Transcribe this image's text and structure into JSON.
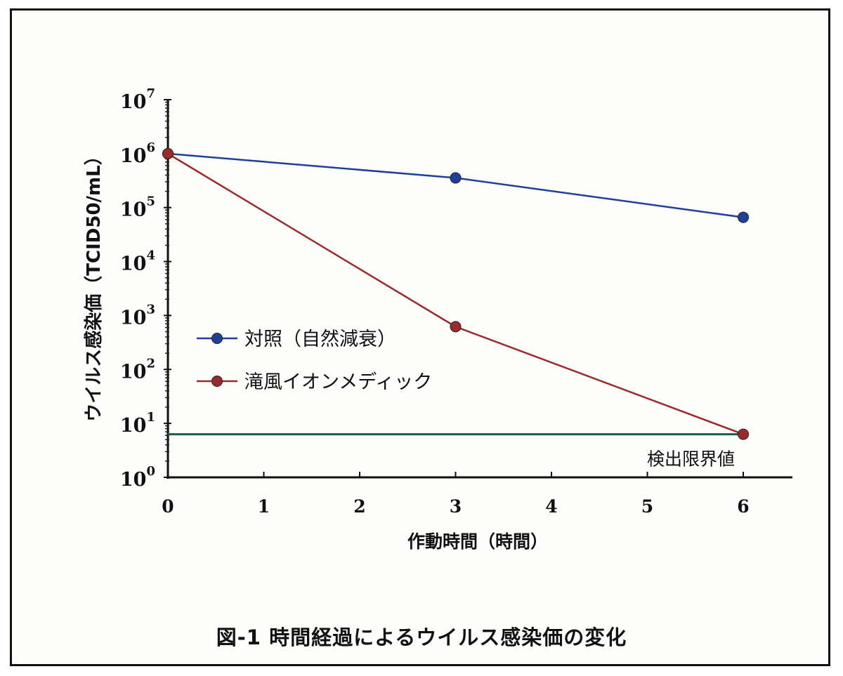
{
  "caption": "図-1 時間経過によるウイルス感染価の変化",
  "chart_data": {
    "type": "line",
    "title": "",
    "xlabel": "作動時間（時間）",
    "ylabel": "ウイルス感染価（TCID50/mL）",
    "xlim": [
      0,
      6
    ],
    "ylim_exponent": [
      0,
      7
    ],
    "y_scale": "log",
    "x_ticks": [
      "0",
      "1",
      "2",
      "3",
      "4",
      "5",
      "6"
    ],
    "y_ticks": [
      {
        "base": "10",
        "exp": "0"
      },
      {
        "base": "10",
        "exp": "1"
      },
      {
        "base": "10",
        "exp": "2"
      },
      {
        "base": "10",
        "exp": "3"
      },
      {
        "base": "10",
        "exp": "4"
      },
      {
        "base": "10",
        "exp": "5"
      },
      {
        "base": "10",
        "exp": "6"
      },
      {
        "base": "10",
        "exp": "7"
      }
    ],
    "legend_position": "left-middle",
    "series": [
      {
        "name": "対照（自然減衰）",
        "color": "#1f3f99",
        "x": [
          0,
          3,
          6
        ],
        "y": [
          1000000,
          355000,
          66000
        ]
      },
      {
        "name": "滝風イオンメディック",
        "color": "#9b2a2a",
        "x": [
          0,
          3,
          6
        ],
        "y": [
          1000000,
          620,
          6.3
        ]
      }
    ],
    "detection_limit": {
      "label": "検出限界値",
      "y": 6.3,
      "color": "#1e5a48"
    }
  }
}
